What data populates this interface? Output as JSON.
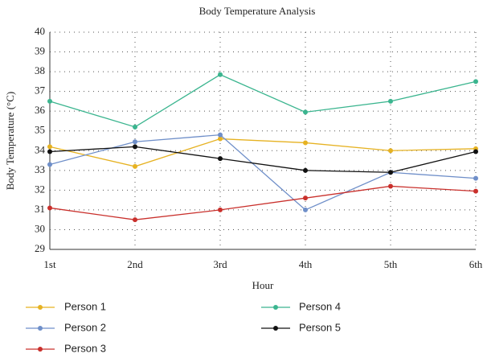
{
  "chart_data": {
    "type": "line",
    "title": "Body Temperature Analysis",
    "x_label": "Hour",
    "y_label": "Body Temperature (°C)",
    "categories": [
      "1st",
      "2nd",
      "3rd",
      "4th",
      "5th",
      "6th"
    ],
    "series": [
      {
        "name": "Person 1",
        "color": "#e6b222",
        "values": [
          34.2,
          33.2,
          34.6,
          34.4,
          34.0,
          34.1
        ]
      },
      {
        "name": "Person 2",
        "color": "#6f8fc9",
        "values": [
          33.3,
          34.45,
          34.8,
          31.0,
          32.9,
          32.6
        ]
      },
      {
        "name": "Person 3",
        "color": "#c9302c",
        "values": [
          31.1,
          30.5,
          31.0,
          31.6,
          32.2,
          31.95
        ]
      },
      {
        "name": "Person 4",
        "color": "#3bb58f",
        "values": [
          36.5,
          35.2,
          37.85,
          35.95,
          36.5,
          37.5
        ]
      },
      {
        "name": "Person 5",
        "color": "#111111",
        "values": [
          33.95,
          34.2,
          33.6,
          33.0,
          32.9,
          33.95
        ]
      }
    ],
    "ylim": [
      29,
      40
    ],
    "yticks": [
      29,
      30,
      31,
      32,
      33,
      34,
      35,
      36,
      37,
      38,
      39,
      40
    ],
    "grid": true
  }
}
